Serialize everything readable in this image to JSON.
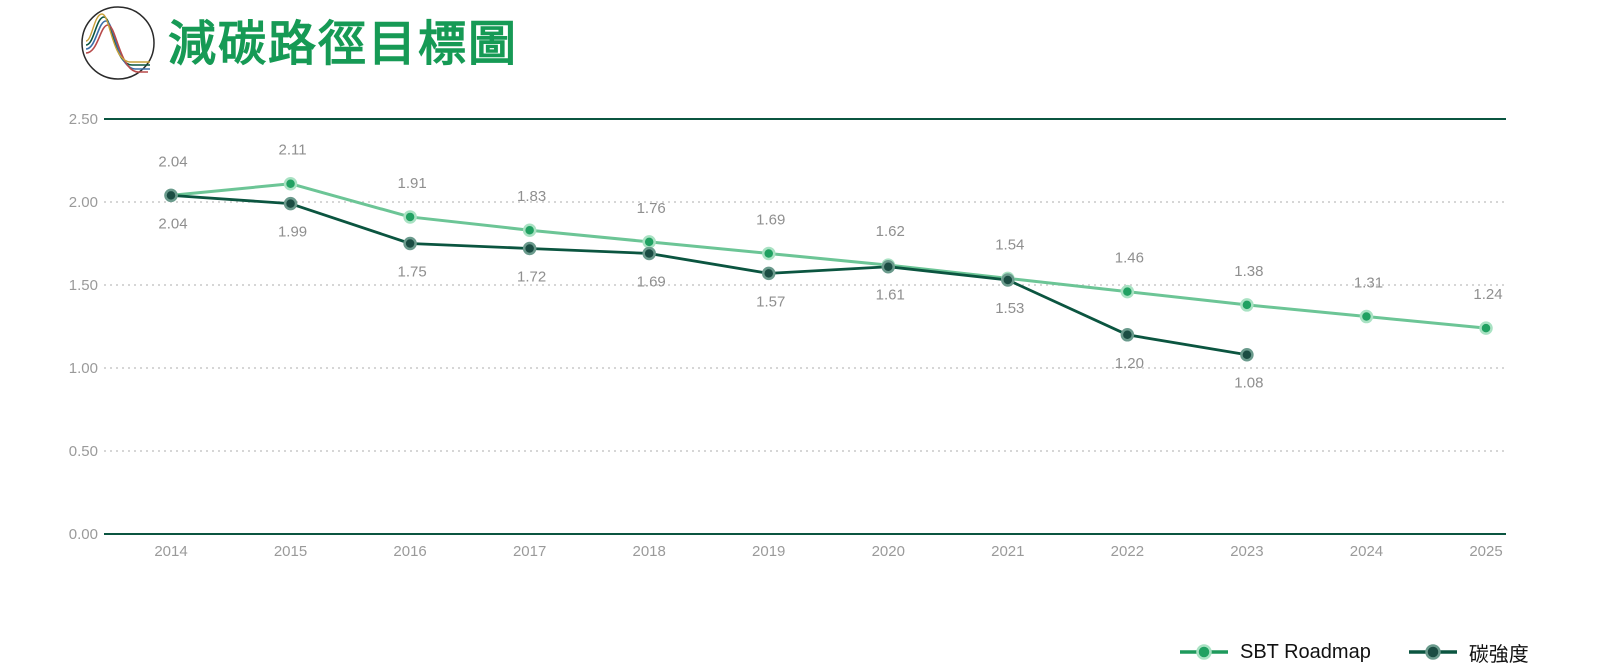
{
  "title": "減碳路徑目標圖",
  "colors": {
    "title": "#169a55",
    "sbt": "#6cc596",
    "sbt_marker": "#21a162",
    "intensity": "#0b5540",
    "intensity_marker": "#1b4d43",
    "axis_line": "#0b5540",
    "grid": "#c9c9c9"
  },
  "chart_data": {
    "type": "line",
    "title": "",
    "xlabel": "",
    "ylabel": "",
    "categories": [
      "2014",
      "2015",
      "2016",
      "2017",
      "2018",
      "2019",
      "2020",
      "2021",
      "2022",
      "2023",
      "2024",
      "2025"
    ],
    "ylim": [
      0,
      2.5
    ],
    "yticks": [
      "0.00",
      "0.50",
      "1.00",
      "1.50",
      "2.00",
      "2.50"
    ],
    "grid": "dotted horizontal",
    "legend_position": "bottom-right",
    "series": [
      {
        "name": "SBT Roadmap",
        "values": [
          2.04,
          2.11,
          1.91,
          1.83,
          1.76,
          1.69,
          1.62,
          1.54,
          1.46,
          1.38,
          1.31,
          1.24
        ],
        "labels": [
          "2.04",
          "2.11",
          "1.91",
          "1.83",
          "1.76",
          "1.69",
          "1.62",
          "1.54",
          "1.46",
          "1.38",
          "1.31",
          "1.24"
        ],
        "label_position": "above"
      },
      {
        "name": "碳強度",
        "values": [
          2.04,
          1.99,
          1.75,
          1.72,
          1.69,
          1.57,
          1.61,
          1.53,
          1.2,
          1.08,
          null,
          null
        ],
        "labels": [
          "2.04",
          "1.99",
          "1.75",
          "1.72",
          "1.69",
          "1.57",
          "1.61",
          "1.53",
          "1.20",
          "1.08",
          "",
          ""
        ],
        "label_position": "below"
      }
    ]
  }
}
